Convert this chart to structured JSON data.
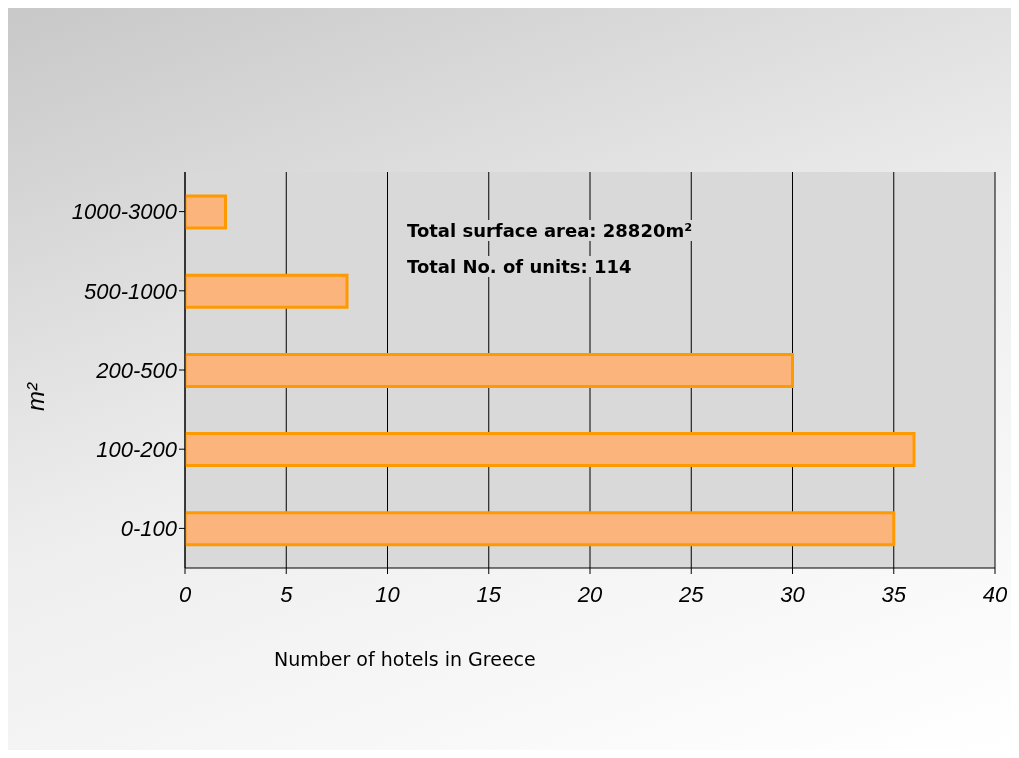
{
  "chart_data": {
    "type": "bar",
    "orientation": "horizontal",
    "categories": [
      "1000-3000",
      "500-1000",
      "200-500",
      "100-200",
      "0-100"
    ],
    "values": [
      2,
      8,
      30,
      36,
      35
    ],
    "color": "#fbb47c",
    "xlim": [
      0,
      40
    ],
    "xticks": [
      0,
      5,
      10,
      15,
      20,
      25,
      30,
      35,
      40
    ],
    "xlabel": "Number of hotels in Greece",
    "ylabel": "m²",
    "annotations": [
      "Total surface area: 28820m²",
      "Total No. of units: 114"
    ],
    "grid": "x"
  }
}
